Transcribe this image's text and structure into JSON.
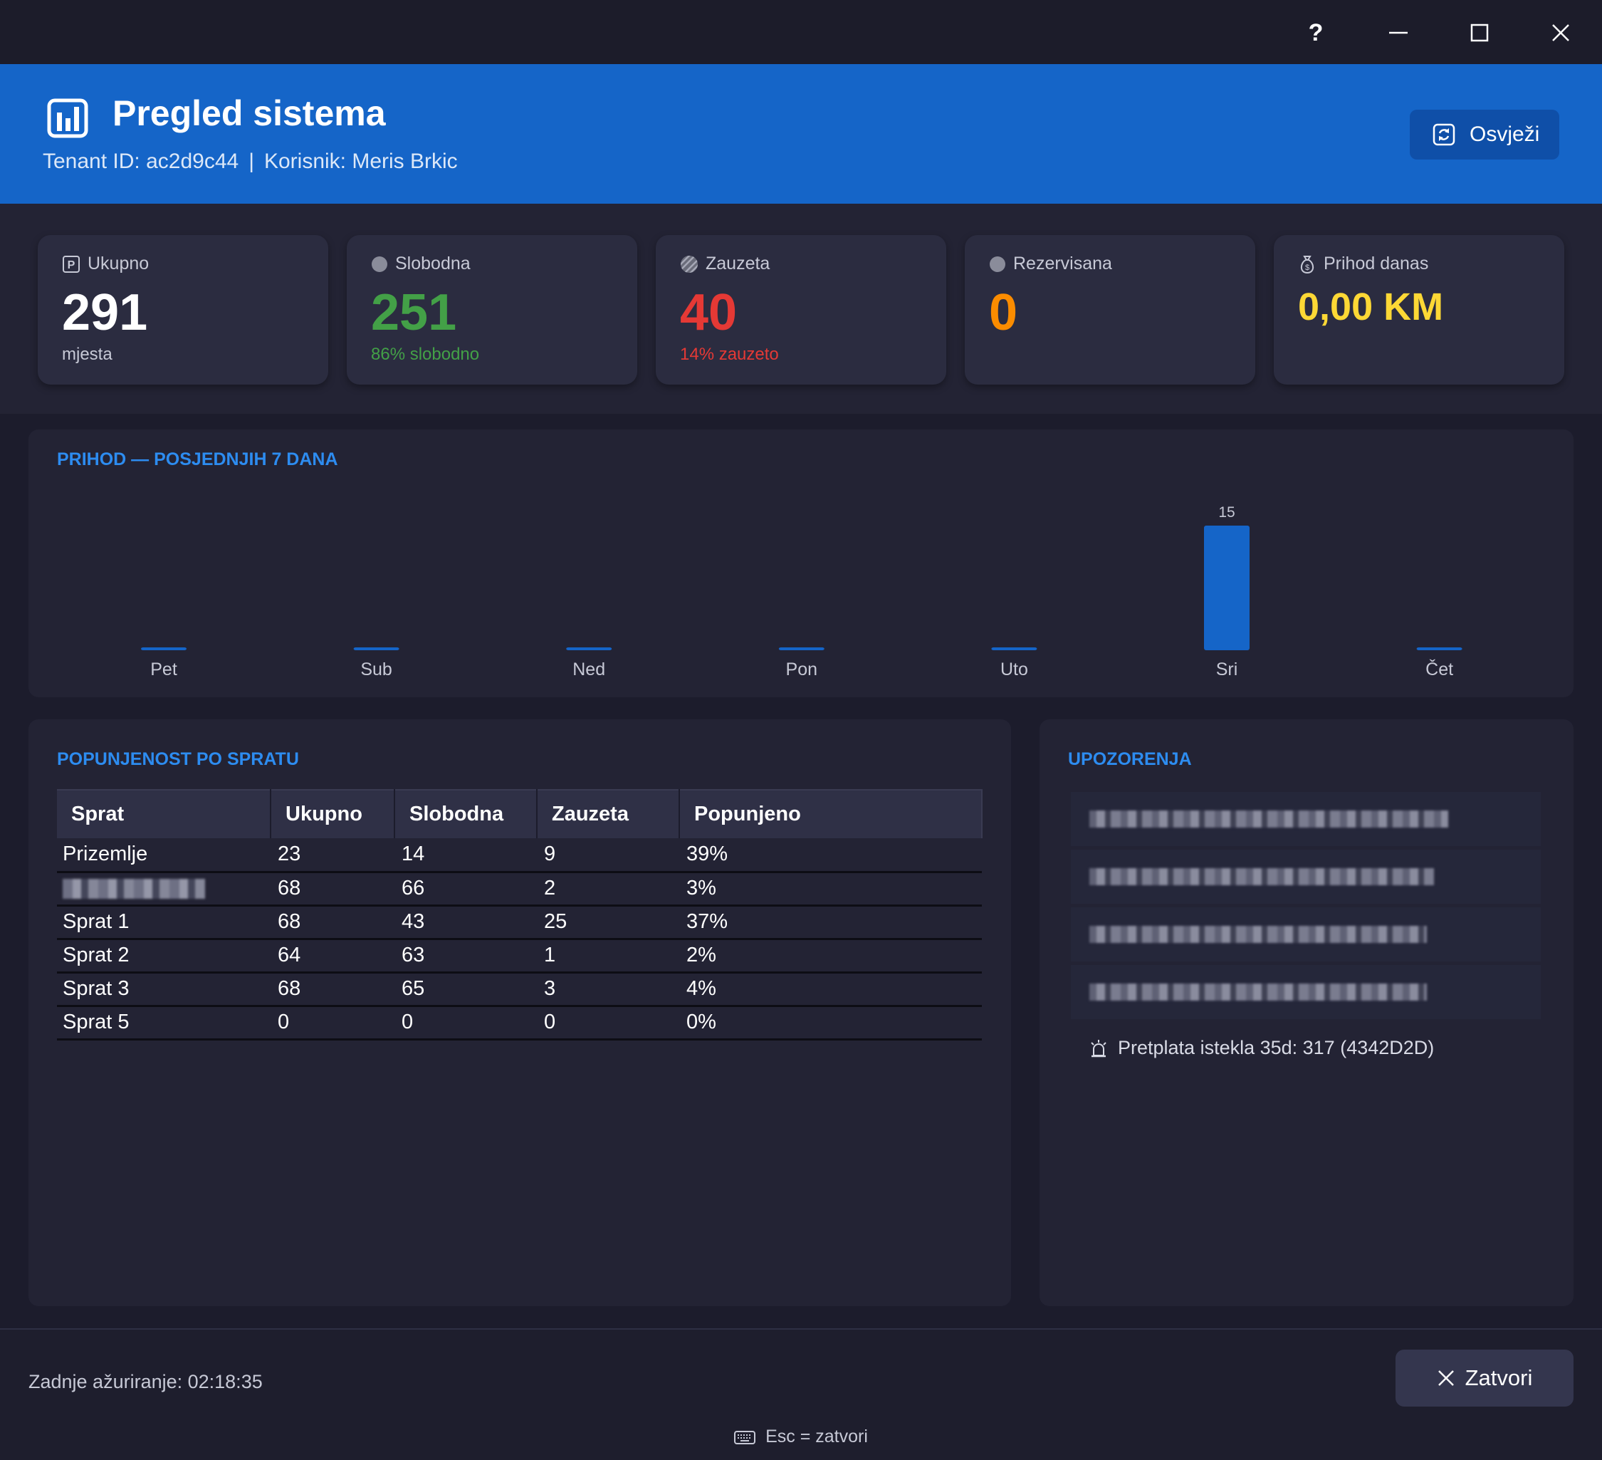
{
  "window": {
    "help_label": "?"
  },
  "header": {
    "title": "Pregled sistema",
    "tenant_label": "Tenant ID: ac2d9c44",
    "separator": "|",
    "user_label": "Korisnik: Meris Brkic",
    "refresh_label": "Osvježi",
    "background_color": "#1565c8"
  },
  "stats": [
    {
      "label": "Ukupno",
      "value": "291",
      "sub": "mjesta",
      "icon": "parking-icon",
      "color": "#ffffff",
      "sub_color": "#c7c9d6"
    },
    {
      "label": "Slobodna",
      "value": "251",
      "sub": "86% slobodno",
      "icon": "dot-icon",
      "color": "#43a047",
      "sub_color": "#43a047"
    },
    {
      "label": "Zauzeta",
      "value": "40",
      "sub": "14% zauzeto",
      "icon": "hatched-dot-icon",
      "color": "#e53935",
      "sub_color": "#e53935"
    },
    {
      "label": "Rezervisana",
      "value": "0",
      "sub": "",
      "icon": "dot-icon",
      "color": "#fb8c00",
      "sub_color": "#fb8c00"
    },
    {
      "label": "Prihod danas",
      "value": "0,00 KM",
      "sub": "",
      "icon": "money-bag-icon",
      "color": "#fdd835",
      "sub_color": "#fdd835"
    }
  ],
  "revenue": {
    "title": "PRIHOD — POSJEDNJIH 7 DANA"
  },
  "chart_data": {
    "type": "bar",
    "title": "PRIHOD — POSJEDNJIH 7 DANA",
    "categories": [
      "Pet",
      "Sub",
      "Ned",
      "Pon",
      "Uto",
      "Sri",
      "Čet"
    ],
    "values": [
      0,
      0,
      0,
      0,
      0,
      15,
      0
    ],
    "data_labels": [
      "",
      "",
      "",
      "",
      "",
      "15",
      ""
    ],
    "bar_color": "#1565c8",
    "xlabel": "",
    "ylabel": "",
    "grid": false
  },
  "floors": {
    "title": "POPUNJENOST PO SPRATU",
    "columns": [
      "Sprat",
      "Ukupno",
      "Slobodna",
      "Zauzeta",
      "Popunjeno"
    ],
    "rows": [
      {
        "name": "Prizemlje",
        "total": "23",
        "free": "14",
        "occupied": "9",
        "filled": "39%",
        "redacted": false
      },
      {
        "name": "",
        "total": "68",
        "free": "66",
        "occupied": "2",
        "filled": "3%",
        "redacted": true
      },
      {
        "name": "Sprat 1",
        "total": "68",
        "free": "43",
        "occupied": "25",
        "filled": "37%",
        "redacted": false
      },
      {
        "name": "Sprat 2",
        "total": "64",
        "free": "63",
        "occupied": "1",
        "filled": "2%",
        "redacted": false
      },
      {
        "name": "Sprat 3",
        "total": "68",
        "free": "65",
        "occupied": "3",
        "filled": "4%",
        "redacted": false
      },
      {
        "name": "Sprat 5",
        "total": "0",
        "free": "0",
        "occupied": "0",
        "filled": "0%",
        "redacted": false
      }
    ]
  },
  "alerts": {
    "title": "UPOZORENJA",
    "last_item": "Pretplata istekla 35d: 317 (4342D2D)",
    "last_icon": "alarm-icon"
  },
  "footer": {
    "last_update": "Zadnje ažuriranje: 02:18:35",
    "close_label": "Zatvori",
    "esc_hint": "Esc = zatvori",
    "esc_icon": "keyboard-icon"
  }
}
